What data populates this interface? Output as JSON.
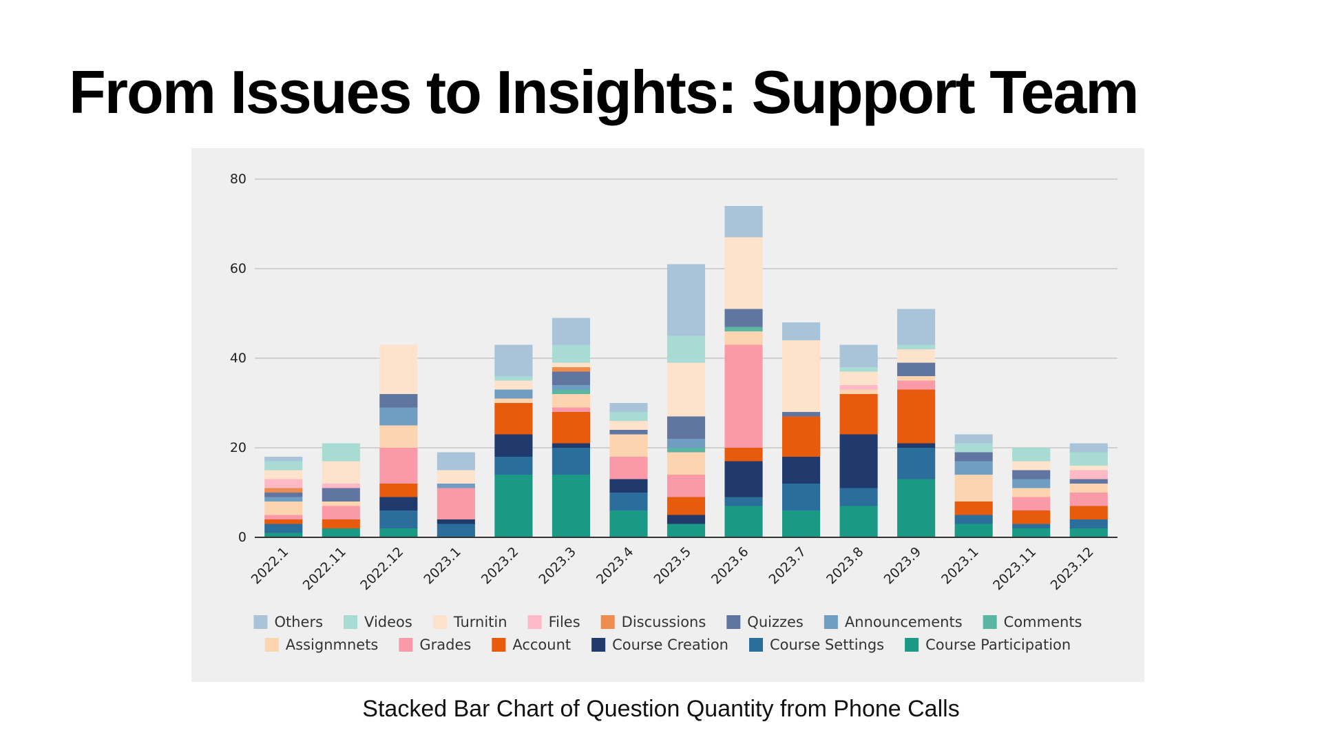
{
  "slide": {
    "title": "From Issues to Insights: Support Team",
    "caption": "Stacked Bar Chart of Question Quantity from Phone Calls"
  },
  "chart_data": {
    "type": "bar",
    "stacked": true,
    "title": "",
    "xlabel": "",
    "ylabel": "",
    "ylim": [
      0,
      80
    ],
    "yticks": [
      0,
      20,
      40,
      60,
      80
    ],
    "grid": true,
    "legend_position": "bottom",
    "categories": [
      "2022.1",
      "2022.11",
      "2022.12",
      "2023.1",
      "2023.2",
      "2023.3",
      "2023.4",
      "2023.5",
      "2023.6",
      "2023.7",
      "2023.8",
      "2023.9",
      "2023.1",
      "2023.11",
      "2023.12"
    ],
    "series": [
      {
        "name": "Course Participation",
        "color": "#1a9985",
        "values": [
          1,
          2,
          2,
          0,
          14,
          14,
          6,
          3,
          7,
          6,
          7,
          13,
          3,
          2,
          2
        ]
      },
      {
        "name": "Course Settings",
        "color": "#2c6e9b",
        "values": [
          2,
          0,
          4,
          3,
          4,
          6,
          4,
          0,
          2,
          6,
          4,
          7,
          2,
          1,
          2
        ]
      },
      {
        "name": "Course Creation",
        "color": "#203a6e",
        "values": [
          0,
          0,
          3,
          1,
          5,
          1,
          3,
          2,
          8,
          6,
          12,
          1,
          0,
          0,
          0
        ]
      },
      {
        "name": "Account",
        "color": "#e85a0c",
        "values": [
          1,
          2,
          3,
          0,
          7,
          7,
          0,
          4,
          3,
          9,
          9,
          12,
          3,
          3,
          3
        ]
      },
      {
        "name": "Grades",
        "color": "#fa9aa9",
        "values": [
          1,
          3,
          8,
          7,
          0,
          1,
          5,
          5,
          23,
          0,
          0,
          2,
          0,
          3,
          3
        ]
      },
      {
        "name": "Assignmnets",
        "color": "#fcd4b0",
        "values": [
          3,
          1,
          5,
          0,
          1,
          3,
          5,
          5,
          3,
          0,
          1,
          1,
          6,
          2,
          2
        ]
      },
      {
        "name": "Comments",
        "color": "#5ab5a2",
        "values": [
          0,
          0,
          0,
          0,
          0,
          1,
          0,
          1,
          1,
          0,
          0,
          0,
          0,
          0,
          0
        ]
      },
      {
        "name": "Announcements",
        "color": "#6f9ec2",
        "values": [
          1,
          0,
          4,
          1,
          2,
          1,
          0,
          2,
          0,
          0,
          0,
          0,
          3,
          2,
          0
        ]
      },
      {
        "name": "Quizzes",
        "color": "#6075a0",
        "values": [
          1,
          3,
          3,
          0,
          0,
          3,
          1,
          5,
          4,
          1,
          0,
          3,
          2,
          2,
          1
        ]
      },
      {
        "name": "Discussions",
        "color": "#ee8b4f",
        "values": [
          1,
          0,
          0,
          0,
          0,
          1,
          0,
          0,
          0,
          0,
          0,
          0,
          0,
          0,
          0
        ]
      },
      {
        "name": "Files",
        "color": "#fdb9c5",
        "values": [
          2,
          1,
          0,
          0,
          0,
          0,
          0,
          0,
          0,
          0,
          1,
          0,
          0,
          0,
          2
        ]
      },
      {
        "name": "Turnitin",
        "color": "#fde2cc",
        "values": [
          2,
          5,
          11,
          3,
          2,
          1,
          2,
          12,
          16,
          16,
          3,
          3,
          0,
          2,
          1
        ]
      },
      {
        "name": "Videos",
        "color": "#a7dbd3",
        "values": [
          2,
          4,
          0,
          0,
          1,
          4,
          2,
          6,
          0,
          0,
          1,
          1,
          2,
          3,
          3
        ]
      },
      {
        "name": "Others",
        "color": "#a9c4d8",
        "values": [
          1,
          0,
          0,
          4,
          7,
          6,
          2,
          16,
          7,
          4,
          5,
          8,
          2,
          0,
          2
        ]
      }
    ],
    "legend_order": [
      "Others",
      "Videos",
      "Turnitin",
      "Files",
      "Discussions",
      "Quizzes",
      "Announcements",
      "Comments",
      "Assignmnets",
      "Grades",
      "Account",
      "Course Creation",
      "Course Settings",
      "Course Participation"
    ]
  }
}
